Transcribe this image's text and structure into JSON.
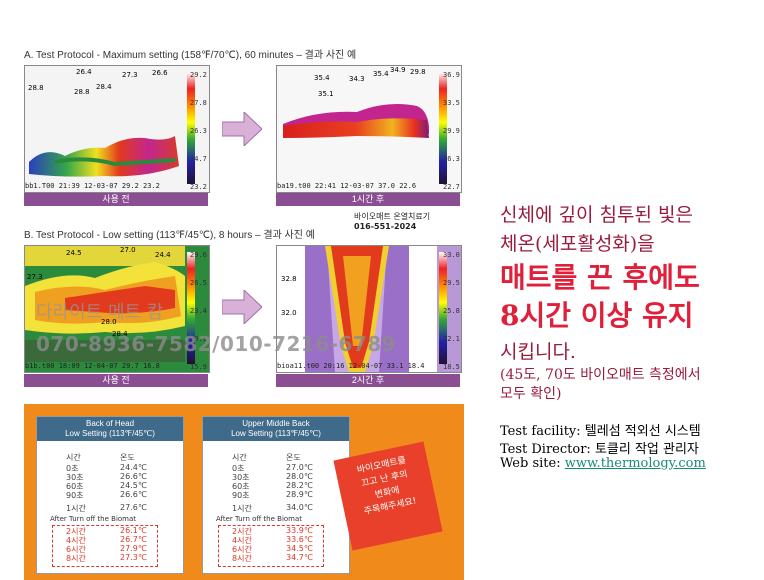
{
  "sectionA": {
    "title": "A. Test Protocol  -  Maximum setting (158℉/70℃), 60 minutes – 결과 사진 예",
    "before": {
      "meta": "bb1.T00          21:39 12-03-07  29.2  23.2",
      "scale": [
        "29.2",
        "27.8",
        "26.3",
        "24.7",
        "23.2"
      ],
      "points": [
        "28.8",
        "26.4",
        "28.8",
        "28.4",
        "27.3",
        "26.6"
      ],
      "caption": "사용 전"
    },
    "after": {
      "meta": "ba19.t00         22:41 12-03-07  37.0  22.6",
      "scale": [
        "36.9",
        "33.5",
        "29.9",
        "26.3",
        "22.7"
      ],
      "points": [
        "35.4",
        "35.1",
        "34.3",
        "35.4",
        "34.9",
        "29.8"
      ],
      "caption": "1시간 후"
    }
  },
  "sectionB": {
    "title": "B. Test Protocol  -  Low setting (113℉/45℃), 8 hours – 결과 사진 예",
    "device": "바이오매트 온열치료기",
    "phone": "016-551-2024",
    "before": {
      "meta": "b1b.t00          18:09 12-04-07  29.7  16.8",
      "scale": [
        "29.6",
        "26.5",
        "23.4",
        "19.1",
        "15.9"
      ],
      "points": [
        "24.5",
        "27.0",
        "27.3",
        "24.4",
        "28.0",
        "28.4"
      ],
      "caption": "사용 전"
    },
    "after": {
      "meta": "bioa11.t00       20:16 12-04-07  33.1  18.4",
      "scale": [
        "33.0",
        "29.5",
        "25.8",
        "22.1",
        "18.5"
      ],
      "points": [
        "32.8",
        "32.0"
      ],
      "caption": "2시간 후"
    }
  },
  "watermark": {
    "name": "다라이트 메트 캄",
    "phones": "070-8936-7582/010-7216-6789"
  },
  "table": {
    "left_header": [
      "Back of Head",
      "Low Setting (113℉/45℃)"
    ],
    "right_header": [
      "Upper Middle Back",
      "Low Setting (113℉/45℃)"
    ],
    "col_time": "시간",
    "col_temp": "온도",
    "after_label": "After Turn off the Biomat",
    "left_rows": [
      [
        "0초",
        "24.4℃"
      ],
      [
        "30초",
        "26.6℃"
      ],
      [
        "60초",
        "24.5℃"
      ],
      [
        "90초",
        "26.6℃"
      ],
      [
        "1시간",
        "27.6℃"
      ]
    ],
    "right_rows": [
      [
        "0초",
        "27.0℃"
      ],
      [
        "30초",
        "28.0℃"
      ],
      [
        "60초",
        "28.2℃"
      ],
      [
        "90초",
        "28.9℃"
      ],
      [
        "1시간",
        "34.0℃"
      ]
    ],
    "left_after": [
      [
        "2시간",
        "26.1℃"
      ],
      [
        "4시간",
        "26.7℃"
      ],
      [
        "6시간",
        "27.9℃"
      ],
      [
        "8시간",
        "27.3℃"
      ]
    ],
    "right_after": [
      [
        "2시간",
        "33.9℃"
      ],
      [
        "4시간",
        "33.6℃"
      ],
      [
        "6시간",
        "34.5℃"
      ],
      [
        "8시간",
        "34.7℃"
      ]
    ],
    "note": [
      "바이오매트를",
      "끄고 난 후의",
      "변화에",
      "주목해주세요!"
    ]
  },
  "right": {
    "line1": "신체에 깊이 침투된 빛은",
    "line2": "체온(세포활성화)을",
    "line3": "매트를 끈 후에도",
    "line4": "8시간 이상 유지",
    "line5": "시킵니다.",
    "line6": "(45도, 70도 바이오매트 측정에서",
    "line7": "모두 확인)",
    "facility_label": "Test facility:",
    "facility_value": "텔레섬 적외선 시스템",
    "director_label": "Test Director:",
    "director_value": "토클리 작업 관리자",
    "site_label": "Web site:",
    "site_value": "www.thermology.com"
  },
  "colors": {
    "purple": "#8b4e93",
    "red_text": "#e0203a",
    "maroon_text": "#9b1b3c",
    "link": "#1a8a7a",
    "orange": "#f08a1a"
  }
}
